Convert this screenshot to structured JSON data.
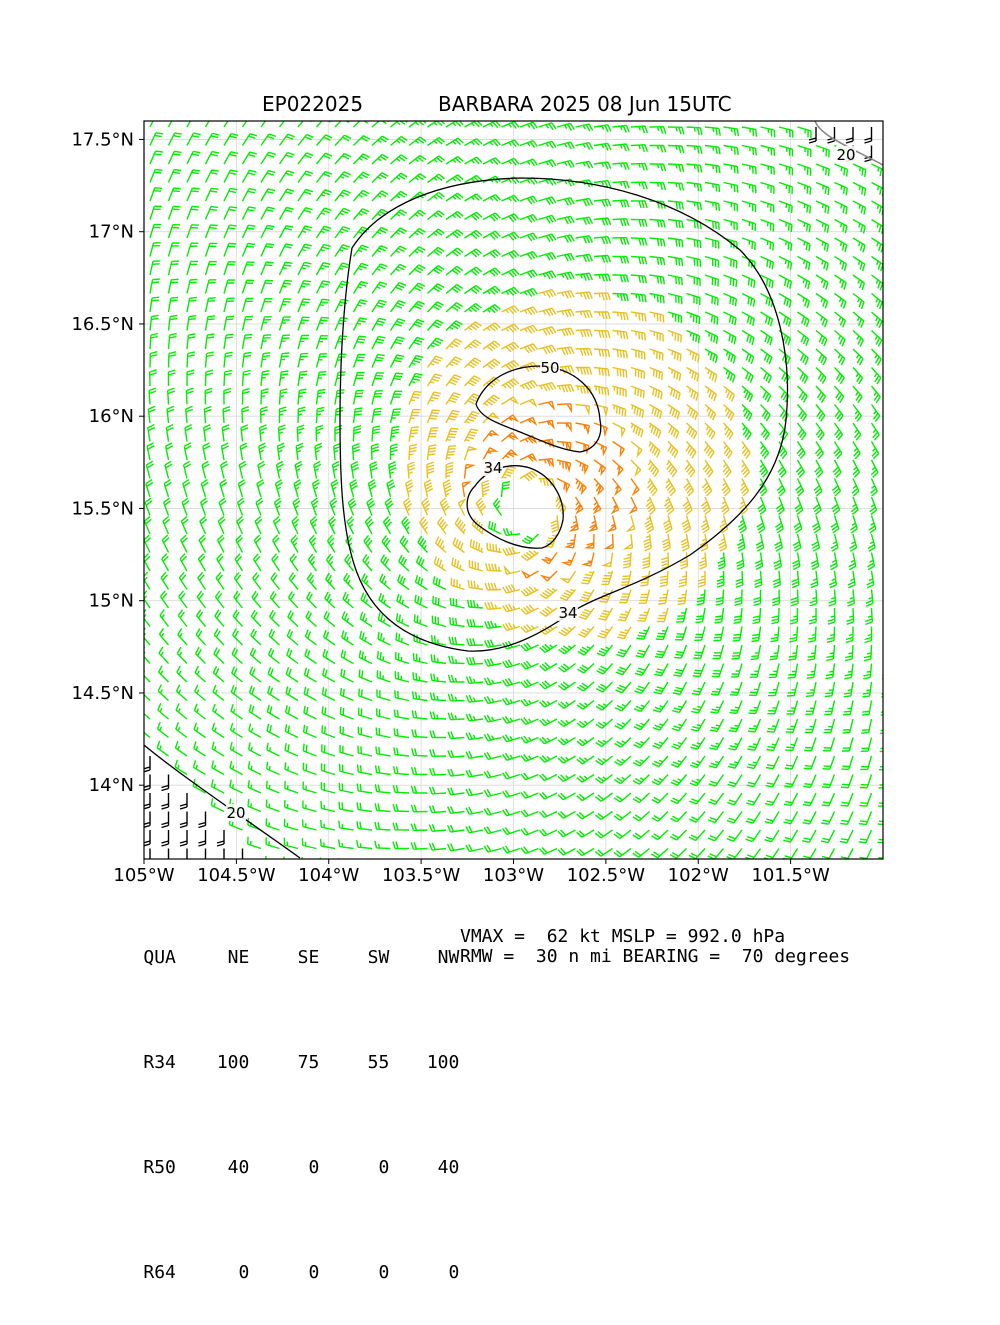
{
  "header": {
    "storm_id": "EP022025",
    "storm_title": "BARBARA 2025 08 Jun 15UTC"
  },
  "chart_data": {
    "type": "wind_barb_map",
    "x_ticks": [
      "105°W",
      "104.5°W",
      "104°W",
      "103.5°W",
      "103°W",
      "102.5°W",
      "102°W",
      "101.5°W"
    ],
    "x_tick_values": [
      -105.0,
      -104.5,
      -104.0,
      -103.5,
      -103.0,
      -102.5,
      -102.0,
      -101.5
    ],
    "y_ticks": [
      "14°N",
      "14.5°N",
      "15°N",
      "15.5°N",
      "16°N",
      "16.5°N",
      "17°N",
      "17.5°N"
    ],
    "y_tick_values": [
      14.0,
      14.5,
      15.0,
      15.5,
      16.0,
      16.5,
      17.0,
      17.5
    ],
    "xlim": [
      -105.0,
      -101.0
    ],
    "ylim": [
      13.6,
      17.6
    ],
    "grid": true,
    "center": {
      "lon": -102.93,
      "lat": 15.5
    },
    "contours": [
      {
        "label": "20",
        "color": "#000000"
      },
      {
        "label": "34",
        "color": "#000000"
      },
      {
        "label": "50",
        "color": "#000000"
      }
    ],
    "wind_colors": {
      "below_34": "#00ee00",
      "34_to_50": "#e8c020",
      "above_50": "#ff7f00",
      "coast": "#000000"
    }
  },
  "radii_table": {
    "header": [
      "QUA",
      "NE",
      "SE",
      "SW",
      "NW"
    ],
    "rows": [
      [
        "R34",
        "100",
        "75",
        "55",
        "100"
      ],
      [
        "R50",
        "40",
        "0",
        "0",
        "40"
      ],
      [
        "R64",
        "0",
        "0",
        "0",
        "0"
      ]
    ]
  },
  "stats": {
    "line1": "VMAX =  62 kt MSLP = 992.0 hPa",
    "line2": "RMW =  30 n mi BEARING =  70 degrees"
  }
}
